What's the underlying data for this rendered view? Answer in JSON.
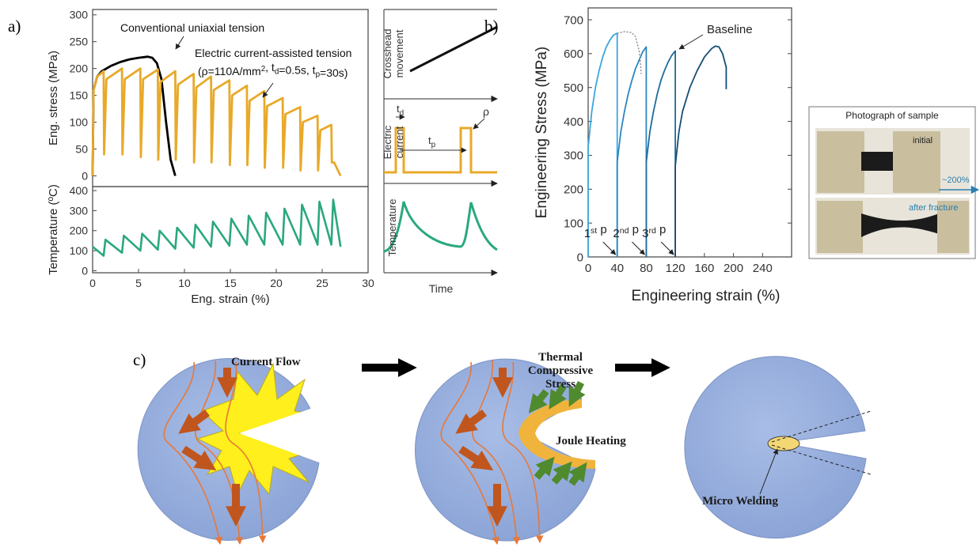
{
  "chart_data": [
    {
      "type": "line",
      "panel_label": "a)",
      "ylabel": "Eng. stress (MPa)",
      "xlim": [
        0,
        30
      ],
      "ylim": [
        -20,
        310
      ],
      "yticks": [
        0,
        50,
        100,
        150,
        200,
        250,
        300
      ],
      "series": [
        {
          "name": "Conventional uniaxial tension",
          "color": "#000000",
          "x": [
            0,
            0.1,
            0.5,
            1,
            2,
            3,
            4,
            5,
            6,
            6.5,
            7,
            7.5,
            8,
            8.5,
            9
          ],
          "values": [
            0,
            160,
            185,
            195,
            205,
            212,
            217,
            220,
            222,
            220,
            210,
            180,
            100,
            30,
            0
          ]
        },
        {
          "name": "Electric current-assisted tension",
          "color": "#e8a92a",
          "x": [
            0,
            0.1,
            0.5,
            1.2,
            1.25,
            1.5,
            3.2,
            3.25,
            3.5,
            5.2,
            5.25,
            5.5,
            7.1,
            7.15,
            7.4,
            9.0,
            9.05,
            9.3,
            11.0,
            11.05,
            11.3,
            12.9,
            12.95,
            13.2,
            14.9,
            14.95,
            15.2,
            16.8,
            16.85,
            17.1,
            18.7,
            18.75,
            19.0,
            20.7,
            20.75,
            21.0,
            22.6,
            22.65,
            22.9,
            24.5,
            24.55,
            24.8,
            26.0,
            26.05,
            26.3,
            27.0
          ],
          "values": [
            0,
            160,
            185,
            195,
            40,
            180,
            200,
            40,
            180,
            200,
            35,
            180,
            198,
            30,
            175,
            195,
            30,
            170,
            190,
            25,
            165,
            185,
            25,
            160,
            178,
            20,
            150,
            168,
            20,
            140,
            158,
            15,
            130,
            145,
            15,
            115,
            128,
            10,
            100,
            112,
            10,
            85,
            95,
            25,
            25,
            0
          ]
        }
      ],
      "annotation": [
        {
          "text": "(ρ=110A/mm"
        },
        {
          "text": "2",
          "style": "sup"
        },
        {
          "text": ", t"
        },
        {
          "text": "d",
          "style": "sub"
        },
        {
          "text": "=0.5s, t"
        },
        {
          "text": "p",
          "style": "sub"
        },
        {
          "text": "=30s)"
        }
      ]
    },
    {
      "type": "line",
      "ylabel": "Temperature (ºC)",
      "xlabel": "Eng. strain (%)",
      "xlim": [
        0,
        30
      ],
      "xticks": [
        0,
        5,
        10,
        15,
        20,
        25,
        30
      ],
      "ylim": [
        -10,
        420
      ],
      "yticks": [
        0,
        100,
        200,
        300,
        400
      ],
      "series": [
        {
          "color": "#2aa87e",
          "x": [
            0,
            1.2,
            1.4,
            3.2,
            3.4,
            5.2,
            5.4,
            7.1,
            7.3,
            9.0,
            9.2,
            11.0,
            11.2,
            12.9,
            13.1,
            14.9,
            15.1,
            16.8,
            17.0,
            18.7,
            18.9,
            20.7,
            20.9,
            22.6,
            22.8,
            24.5,
            24.7,
            26.0,
            26.2,
            27.0
          ],
          "values": [
            120,
            75,
            155,
            90,
            175,
            100,
            185,
            105,
            200,
            110,
            215,
            115,
            230,
            120,
            245,
            125,
            260,
            130,
            275,
            130,
            290,
            130,
            310,
            130,
            330,
            130,
            345,
            130,
            355,
            120
          ]
        }
      ]
    },
    {
      "type": "line",
      "panel_label": "b)",
      "ylabel": "Engineering Stress (MPa)",
      "xlabel": "Engineering strain (%)",
      "xlim": [
        0,
        280
      ],
      "ylim": [
        0,
        735
      ],
      "xticks": [
        0,
        40,
        80,
        120,
        160,
        200,
        240
      ],
      "yticks": [
        0,
        100,
        200,
        300,
        400,
        500,
        600,
        700
      ],
      "series": [
        {
          "color": "#3aa7dc",
          "x": [
            0,
            0,
            0.5,
            5,
            10,
            15,
            20,
            25,
            30,
            35,
            40,
            40
          ],
          "values": [
            0,
            330,
            335,
            430,
            500,
            550,
            590,
            620,
            640,
            655,
            660,
            0
          ]
        },
        {
          "color": "#2b86c0",
          "x": [
            40,
            40,
            45,
            50,
            55,
            60,
            65,
            70,
            75,
            80,
            80
          ],
          "values": [
            0,
            280,
            370,
            430,
            480,
            520,
            555,
            580,
            605,
            620,
            0
          ]
        },
        {
          "color": "#1f6a9a",
          "x": [
            80,
            80,
            85,
            90,
            95,
            100,
            105,
            110,
            115,
            120,
            120
          ],
          "values": [
            0,
            280,
            370,
            430,
            480,
            520,
            550,
            575,
            595,
            608,
            0
          ]
        },
        {
          "color": "#154e73",
          "x": [
            120,
            120,
            125,
            130,
            140,
            150,
            160,
            170,
            175,
            180,
            185,
            190,
            190
          ],
          "values": [
            0,
            270,
            370,
            430,
            500,
            550,
            590,
            615,
            622,
            620,
            600,
            560,
            495
          ]
        },
        {
          "name": "Baseline",
          "color": "#888888",
          "style": "dotted",
          "x": [
            40,
            50,
            60,
            65,
            70,
            72,
            73
          ],
          "values": [
            660,
            665,
            662,
            650,
            610,
            570,
            540
          ]
        }
      ],
      "pulses": [
        {
          "x": 40,
          "parts": [
            {
              "text": "1"
            },
            {
              "text": "st",
              "style": "sup"
            },
            {
              "text": " p"
            }
          ]
        },
        {
          "x": 80,
          "parts": [
            {
              "text": "2"
            },
            {
              "text": "nd",
              "style": "sup"
            },
            {
              "text": " p"
            }
          ]
        },
        {
          "x": 120,
          "parts": [
            {
              "text": "3"
            },
            {
              "text": "rd",
              "style": "sup"
            },
            {
              "text": " p"
            }
          ]
        }
      ]
    }
  ],
  "schematic": {
    "crosshead": [
      "Crosshead",
      "movement"
    ],
    "current": [
      "Electric",
      "current"
    ],
    "temperature": "Temperature",
    "time": "Time",
    "td": [
      "t",
      "d"
    ],
    "tp": [
      "t",
      "p"
    ],
    "rho": "ρ"
  },
  "photo": {
    "title": "Photograph of sample",
    "initial": "initial",
    "stretch": "~200%",
    "fracture": "after fracture"
  },
  "diagram": {
    "panel_label": "c)",
    "current_flow": "Current Flow",
    "thermal": [
      "Thermal",
      "Compressive",
      "Stress"
    ],
    "joule": "Joule Heating",
    "micro": "Micro Welding"
  }
}
